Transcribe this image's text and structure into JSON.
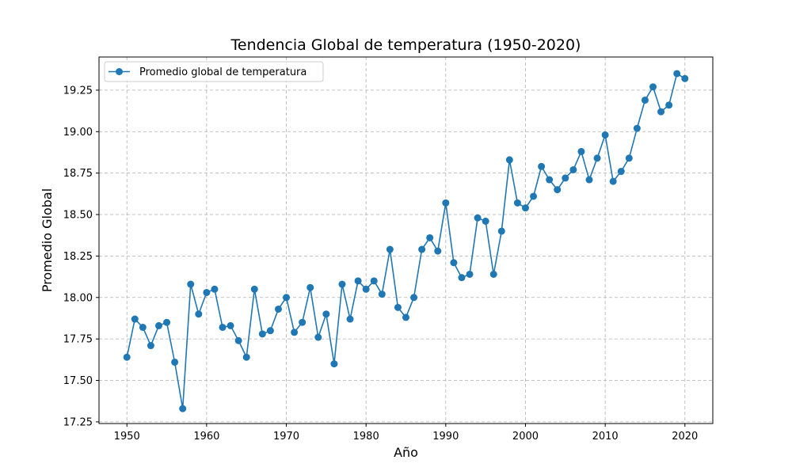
{
  "chart_data": {
    "type": "line",
    "title": "Tendencia Global de temperatura (1950-2020)",
    "xlabel": "Año",
    "ylabel": "Promedio Global",
    "xlim": [
      1946.5,
      2023.5
    ],
    "ylim": [
      17.24,
      19.45
    ],
    "xticks": [
      1950,
      1960,
      1970,
      1980,
      1990,
      2000,
      2010,
      2020
    ],
    "xtick_labels": [
      "1950",
      "1960",
      "1970",
      "1980",
      "1990",
      "2000",
      "2010",
      "2020"
    ],
    "yticks": [
      17.25,
      17.5,
      17.75,
      18.0,
      18.25,
      18.5,
      18.75,
      19.0,
      19.25
    ],
    "ytick_labels": [
      "17.25",
      "17.50",
      "17.75",
      "18.00",
      "18.25",
      "18.50",
      "18.75",
      "19.00",
      "19.25"
    ],
    "grid": true,
    "legend_position": "top-left",
    "color": "#1f77b4",
    "x": [
      1950,
      1951,
      1952,
      1953,
      1954,
      1955,
      1956,
      1957,
      1958,
      1959,
      1960,
      1961,
      1962,
      1963,
      1964,
      1965,
      1966,
      1967,
      1968,
      1969,
      1970,
      1971,
      1972,
      1973,
      1974,
      1975,
      1976,
      1977,
      1978,
      1979,
      1980,
      1981,
      1982,
      1983,
      1984,
      1985,
      1986,
      1987,
      1988,
      1989,
      1990,
      1991,
      1992,
      1993,
      1994,
      1995,
      1996,
      1997,
      1998,
      1999,
      2000,
      2001,
      2002,
      2003,
      2004,
      2005,
      2006,
      2007,
      2008,
      2009,
      2010,
      2011,
      2012,
      2013,
      2014,
      2015,
      2016,
      2017,
      2018,
      2019,
      2020
    ],
    "series": [
      {
        "name": "Promedio global de temperatura",
        "values": [
          17.64,
          17.87,
          17.82,
          17.71,
          17.83,
          17.85,
          17.61,
          17.33,
          18.08,
          17.9,
          18.03,
          18.05,
          17.82,
          17.83,
          17.74,
          17.64,
          18.05,
          17.78,
          17.8,
          17.93,
          18.0,
          17.79,
          17.85,
          18.06,
          17.76,
          17.9,
          17.6,
          18.08,
          17.87,
          18.1,
          18.05,
          18.1,
          18.02,
          18.29,
          17.94,
          17.88,
          18.0,
          18.29,
          18.36,
          18.28,
          18.57,
          18.21,
          18.12,
          18.14,
          18.48,
          18.46,
          18.14,
          18.4,
          18.83,
          18.57,
          18.54,
          18.61,
          18.79,
          18.71,
          18.65,
          18.72,
          18.77,
          18.88,
          18.71,
          18.84,
          18.98,
          18.7,
          18.76,
          18.84,
          19.02,
          19.19,
          19.27,
          19.12,
          19.16,
          19.35,
          19.32
        ]
      }
    ]
  }
}
